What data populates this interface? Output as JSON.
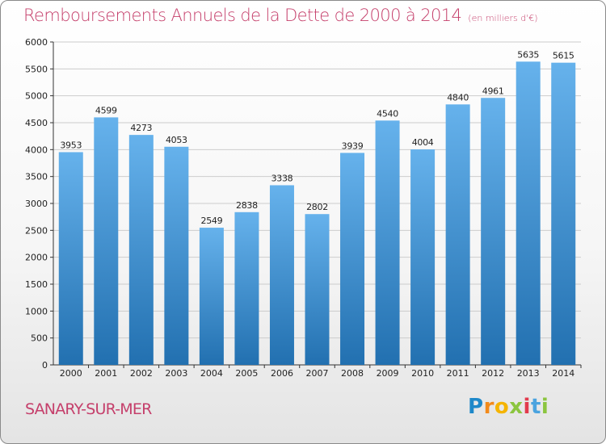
{
  "title": "Remboursements Annuels de la Dette de 2000 à 2014",
  "unit_note": "(en milliers d'€)",
  "commune": "SANARY-SUR-MER",
  "brand": {
    "letters": [
      "P",
      "r",
      "o",
      "x",
      "i",
      "t",
      "i"
    ],
    "colors": [
      "#1e88c9",
      "#f28a1b",
      "#f5b400",
      "#8bc53f",
      "#e23b4d",
      "#4aa3df",
      "#8bc53f"
    ]
  },
  "colors": {
    "bar_light": "#66b2ec",
    "bar_dark": "#2270b0",
    "title": "#c53f6b",
    "grid": "#cccccc"
  },
  "chart_data": {
    "type": "bar",
    "title": "Remboursements Annuels de la Dette de 2000 à 2014",
    "xlabel": "",
    "ylabel": "(en milliers d'€)",
    "categories": [
      "2000",
      "2001",
      "2002",
      "2003",
      "2004",
      "2005",
      "2006",
      "2007",
      "2008",
      "2009",
      "2010",
      "2011",
      "2012",
      "2013",
      "2014"
    ],
    "values": [
      3953,
      4599,
      4273,
      4053,
      2549,
      2838,
      3338,
      2802,
      3939,
      4540,
      4004,
      4840,
      4961,
      5635,
      5615
    ],
    "ylim": [
      0,
      6000
    ],
    "yticks": [
      0,
      500,
      1000,
      1500,
      2000,
      2500,
      3000,
      3500,
      4000,
      4500,
      5000,
      5500,
      6000
    ],
    "grid": true
  }
}
